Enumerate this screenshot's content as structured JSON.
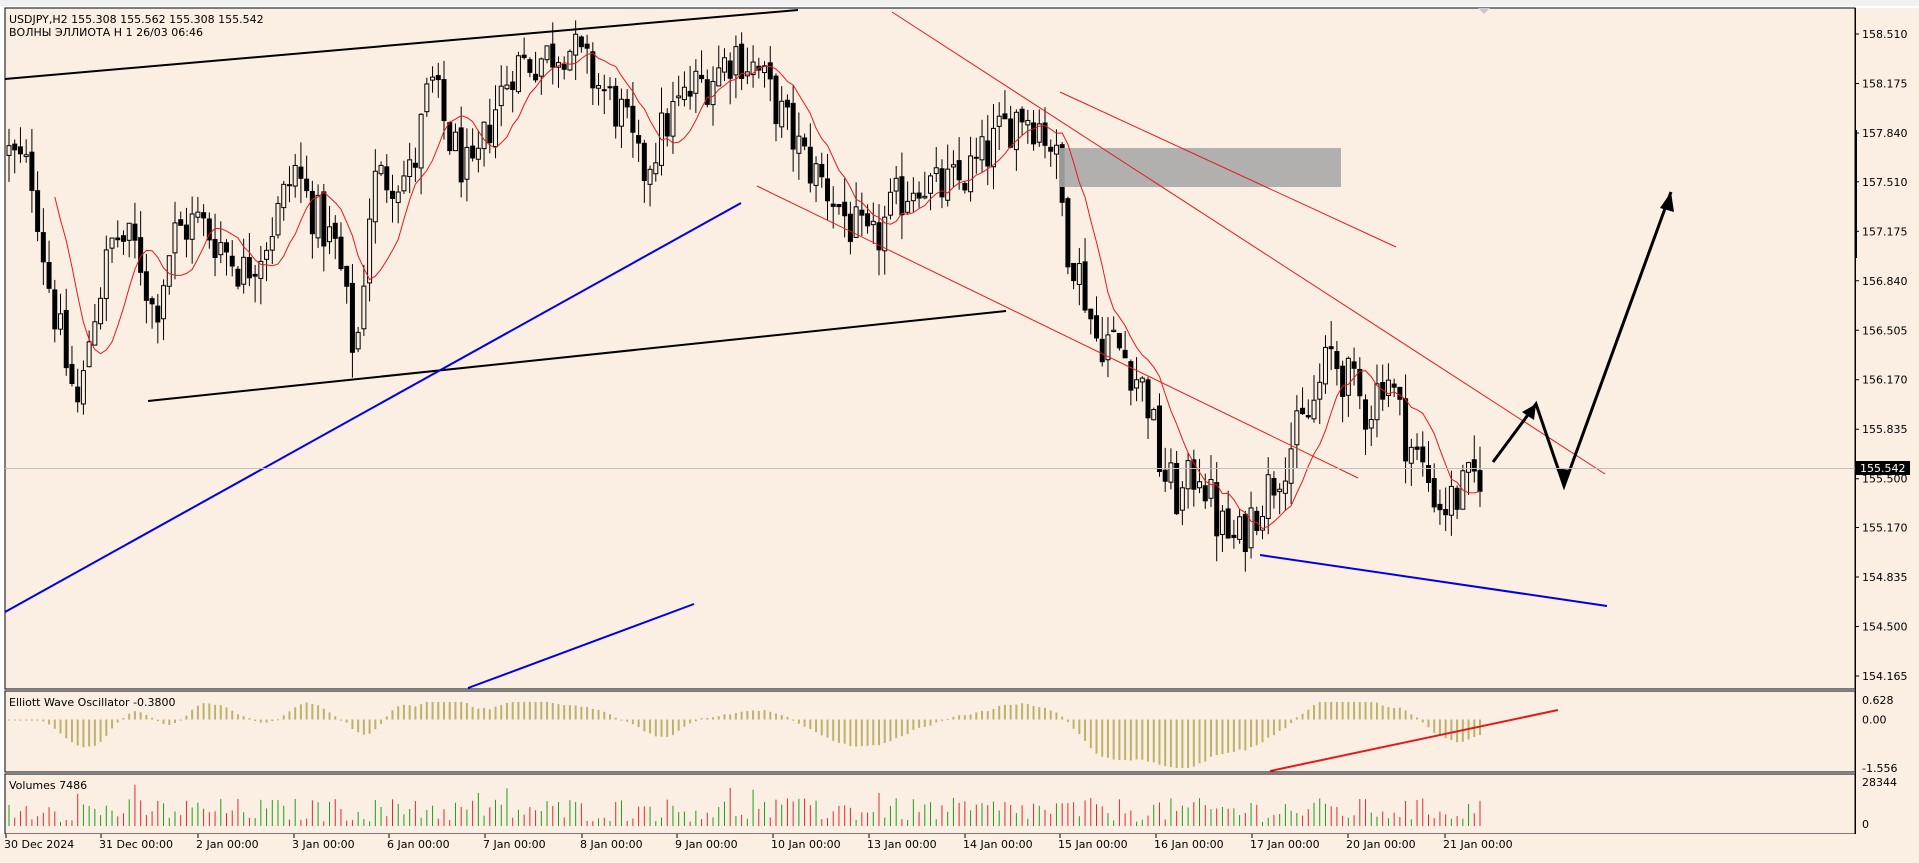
{
  "header": {
    "symbol_line": "USDJPY,H2  155.308 155.562 155.308 155.542",
    "indicator_line": "ВОЛНЫ ЭЛЛИОТА Н 1 26/03 06:46"
  },
  "colors": {
    "background": "#fbefe3",
    "candle": "#000000",
    "ma_line": "#e31a1c",
    "blue_line": "#0000e6",
    "oscillator_bar": "#bdb26a",
    "volume_up": "#1a9e1a",
    "volume_down": "#e02b2b",
    "zone": "#a9a9a9"
  },
  "main_panel": {
    "current_price": "155.542",
    "price_ticks": [
      "158.510",
      "158.175",
      "157.840",
      "157.510",
      "157.175",
      "156.840",
      "156.505",
      "156.170",
      "155.835",
      "155.500",
      "155.170",
      "154.835",
      "154.500",
      "154.165"
    ]
  },
  "oscillator_panel": {
    "title": "Elliott Wave Oscillator -0.3800",
    "ticks": [
      "0.628",
      "0.00",
      "-1.556"
    ]
  },
  "volume_panel": {
    "title": "Volumes 7486",
    "ticks": [
      "28344",
      "0"
    ]
  },
  "time_axis": {
    "labels": [
      "30 Dec 2024",
      "31 Dec 00:00",
      "2 Jan 00:00",
      "3 Jan 00:00",
      "6 Jan 00:00",
      "7 Jan 00:00",
      "8 Jan 00:00",
      "9 Jan 00:00",
      "10 Jan 00:00",
      "13 Jan 00:00",
      "14 Jan 00:00",
      "15 Jan 00:00",
      "16 Jan 00:00",
      "17 Jan 00:00",
      "20 Jan 00:00",
      "21 Jan 00:00"
    ]
  },
  "chart_data": {
    "type": "candlestick",
    "symbol": "USDJPY",
    "timeframe": "H2",
    "ylim": [
      154.0,
      158.75
    ],
    "x_ticks": [
      "30 Dec 2024",
      "31 Dec 00:00",
      "2 Jan 00:00",
      "3 Jan 00:00",
      "6 Jan 00:00",
      "7 Jan 00:00",
      "8 Jan 00:00",
      "9 Jan 00:00",
      "10 Jan 00:00",
      "13 Jan 00:00",
      "14 Jan 00:00",
      "15 Jan 00:00",
      "16 Jan 00:00",
      "17 Jan 00:00",
      "20 Jan 00:00",
      "21 Jan 00:00"
    ],
    "y_ticks": [
      158.51,
      158.175,
      157.84,
      157.51,
      157.175,
      156.84,
      156.505,
      156.17,
      155.835,
      155.5,
      155.17,
      154.835,
      154.5,
      154.165
    ],
    "last_price": 155.542,
    "close_path": [
      [
        0,
        157.7
      ],
      [
        10,
        157.55
      ],
      [
        16,
        156.9
      ],
      [
        24,
        156.3
      ],
      [
        30,
        155.95
      ],
      [
        35,
        156.55
      ],
      [
        45,
        157.15
      ],
      [
        55,
        157.05
      ],
      [
        62,
        156.6
      ],
      [
        70,
        157.15
      ],
      [
        80,
        157.25
      ],
      [
        90,
        157.1
      ],
      [
        100,
        156.9
      ],
      [
        109,
        157.1
      ],
      [
        115,
        157.3
      ],
      [
        122,
        157.6
      ],
      [
        130,
        157.3
      ],
      [
        140,
        157.05
      ],
      [
        148,
        156.3
      ],
      [
        155,
        157.5
      ],
      [
        162,
        157.55
      ],
      [
        172,
        157.55
      ],
      [
        180,
        158.2
      ],
      [
        188,
        157.8
      ],
      [
        198,
        157.5
      ],
      [
        206,
        157.95
      ],
      [
        215,
        158.3
      ],
      [
        228,
        158.35
      ],
      [
        238,
        158.45
      ],
      [
        250,
        158.2
      ],
      [
        262,
        157.95
      ],
      [
        270,
        157.55
      ],
      [
        282,
        157.95
      ],
      [
        293,
        158.15
      ],
      [
        302,
        158.25
      ],
      [
        310,
        158.4
      ],
      [
        320,
        158.25
      ],
      [
        330,
        157.95
      ],
      [
        340,
        157.65
      ],
      [
        350,
        157.45
      ],
      [
        360,
        157.2
      ],
      [
        368,
        157.05
      ],
      [
        378,
        157.35
      ],
      [
        388,
        157.55
      ],
      [
        396,
        157.45
      ],
      [
        405,
        157.5
      ],
      [
        415,
        157.65
      ],
      [
        424,
        157.85
      ],
      [
        432,
        158.0
      ],
      [
        440,
        157.9
      ],
      [
        446,
        157.75
      ],
      [
        452,
        157.1
      ],
      [
        458,
        156.85
      ],
      [
        464,
        156.45
      ],
      [
        470,
        156.45
      ],
      [
        478,
        156.3
      ],
      [
        486,
        156.05
      ],
      [
        492,
        155.55
      ],
      [
        500,
        155.35
      ],
      [
        508,
        155.6
      ],
      [
        516,
        155.2
      ],
      [
        524,
        155.05
      ],
      [
        532,
        155.3
      ],
      [
        540,
        155.5
      ],
      [
        548,
        155.75
      ],
      [
        556,
        155.95
      ],
      [
        564,
        156.35
      ],
      [
        572,
        156.15
      ],
      [
        580,
        155.95
      ],
      [
        588,
        156.25
      ],
      [
        596,
        155.8
      ],
      [
        604,
        155.55
      ],
      [
        612,
        155.3
      ],
      [
        620,
        155.4
      ],
      [
        628,
        155.55
      ]
    ],
    "oscillator": {
      "name": "Elliott Wave Oscillator",
      "last_value": -0.38,
      "ylim": [
        -1.556,
        0.628
      ]
    },
    "volume": {
      "name": "Volumes",
      "last_value": 7486,
      "ylim": [
        0,
        28344
      ]
    },
    "annotations": [
      "black trendline top-left",
      "black trendline lower channel",
      "blue ascending support lines",
      "red descending channel lines",
      "grey resistance zone",
      "blue descending line under lows",
      "red rising line on oscillator",
      "black projected zigzag arrow"
    ]
  }
}
